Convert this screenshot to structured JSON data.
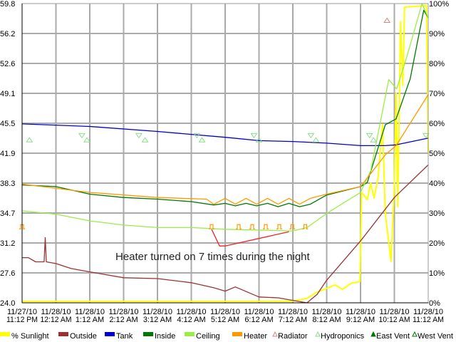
{
  "chart_data": {
    "type": "line",
    "annotation": "Heater turned on 7 times during the night",
    "grid": true,
    "legend_position": "bottom",
    "x_ticks": [
      [
        "11/27/10",
        "11:12 PM"
      ],
      [
        "11/28/10",
        "12:12 AM"
      ],
      [
        "11/28/10",
        "1:12 AM"
      ],
      [
        "11/28/10",
        "2:12 AM"
      ],
      [
        "11/28/10",
        "3:12 AM"
      ],
      [
        "11/28/10",
        "4:12 AM"
      ],
      [
        "11/28/10",
        "5:12 AM"
      ],
      [
        "11/28/10",
        "6:12 AM"
      ],
      [
        "11/28/10",
        "7:12 AM"
      ],
      [
        "11/28/10",
        "8:12 AM"
      ],
      [
        "11/28/10",
        "9:12 AM"
      ],
      [
        "11/28/10",
        "10:12 AM"
      ],
      [
        "11/28/10",
        "11:12 AM"
      ]
    ],
    "xlim": [
      "23:12",
      "11:12"
    ],
    "y_left": {
      "ticks": [
        "59.8",
        "56.2",
        "52.6",
        "49.1",
        "45.5",
        "41.9",
        "38.3",
        "34.7",
        "31.2",
        "27.6",
        "24.0"
      ],
      "ylim": [
        24.0,
        59.8
      ]
    },
    "y_right": {
      "ticks": [
        "100%",
        "90%",
        "80%",
        "70%",
        "60%",
        "50%",
        "40%",
        "30%",
        "20%",
        "10%",
        "0%"
      ],
      "ylim": [
        0,
        100
      ]
    },
    "series": [
      {
        "name": "% Sunlight",
        "color": "#ffff00",
        "axis": "right",
        "points": [
          [
            "23:12",
            0.5
          ],
          [
            "07:11",
            0.5
          ],
          [
            "07:37",
            1.5
          ],
          [
            "07:55",
            3.6
          ],
          [
            "08:12",
            4.8
          ],
          [
            "08:27",
            6
          ],
          [
            "08:40",
            4.5
          ],
          [
            "08:55",
            6.5
          ],
          [
            "09:11",
            7.1
          ],
          [
            "09:14",
            36.9
          ],
          [
            "09:24",
            34.5
          ],
          [
            "09:30",
            40
          ],
          [
            "09:36",
            35
          ],
          [
            "09:43",
            41.7
          ],
          [
            "09:51",
            59.5
          ],
          [
            "09:56",
            29.8
          ],
          [
            "10:06",
            13.8
          ],
          [
            "10:12",
            40
          ],
          [
            "10:15",
            70.2
          ],
          [
            "10:18",
            32.1
          ],
          [
            "10:23",
            94
          ],
          [
            "10:27",
            72.6
          ],
          [
            "10:30",
            98.8
          ],
          [
            "11:09",
            99.3
          ],
          [
            "11:12",
            50
          ]
        ]
      },
      {
        "name": "Outside",
        "color": "#993333",
        "axis": "left",
        "points": [
          [
            "23:12",
            29.4
          ],
          [
            "23:23",
            29.4
          ],
          [
            "23:36",
            28.9
          ],
          [
            "23:51",
            28.9
          ],
          [
            "23:53",
            31.8
          ],
          [
            "23:55",
            28.9
          ],
          [
            "00:12",
            28.7
          ],
          [
            "00:39",
            28.1
          ],
          [
            "01:12",
            27.7
          ],
          [
            "02:12",
            27.0
          ],
          [
            "03:12",
            26.9
          ],
          [
            "04:12",
            26.4
          ],
          [
            "04:52",
            25.8
          ],
          [
            "05:12",
            25.4
          ],
          [
            "05:30",
            25.9
          ],
          [
            "06:12",
            24.7
          ],
          [
            "06:46",
            24.6
          ],
          [
            "07:11",
            24.3
          ],
          [
            "07:37",
            24.0
          ],
          [
            "07:55",
            25.0
          ],
          [
            "08:12",
            26.7
          ],
          [
            "09:12",
            31.4
          ],
          [
            "10:12",
            36.6
          ],
          [
            "11:12",
            40.5
          ]
        ]
      },
      {
        "name": "Tank",
        "color": "#0000cc",
        "axis": "left",
        "points": [
          [
            "23:12",
            45.4
          ],
          [
            "01:12",
            45.1
          ],
          [
            "03:12",
            44.5
          ],
          [
            "05:12",
            43.8
          ],
          [
            "06:12",
            43.4
          ],
          [
            "07:12",
            43.3
          ],
          [
            "08:12",
            43.1
          ],
          [
            "09:12",
            42.8
          ],
          [
            "09:56",
            42.8
          ],
          [
            "10:15",
            42.9
          ],
          [
            "11:12",
            43.7
          ]
        ]
      },
      {
        "name": "Inside",
        "color": "#007700",
        "axis": "left",
        "points": [
          [
            "23:12",
            38.1
          ],
          [
            "00:12",
            37.9
          ],
          [
            "01:12",
            37.0
          ],
          [
            "02:12",
            36.6
          ],
          [
            "03:12",
            36.4
          ],
          [
            "04:12",
            36.1
          ],
          [
            "04:52",
            35.7
          ],
          [
            "05:12",
            35.9
          ],
          [
            "05:30",
            35.6
          ],
          [
            "05:49",
            35.9
          ],
          [
            "06:08",
            35.6
          ],
          [
            "06:27",
            35.9
          ],
          [
            "06:46",
            35.5
          ],
          [
            "07:05",
            35.9
          ],
          [
            "07:24",
            35.5
          ],
          [
            "07:43",
            35.8
          ],
          [
            "08:12",
            36.9
          ],
          [
            "09:12",
            37.9
          ],
          [
            "09:24",
            38.4
          ],
          [
            "09:56",
            45.3
          ],
          [
            "10:15",
            46.0
          ],
          [
            "10:40",
            50.8
          ],
          [
            "11:04",
            59.0
          ],
          [
            "11:12",
            58.1
          ]
        ]
      },
      {
        "name": "Ceiling",
        "color": "#99ee44",
        "axis": "left",
        "points": [
          [
            "23:12",
            35.0
          ],
          [
            "00:12",
            34.6
          ],
          [
            "01:12",
            33.8
          ],
          [
            "02:12",
            33.3
          ],
          [
            "03:12",
            33.0
          ],
          [
            "04:12",
            33.0
          ],
          [
            "05:12",
            32.8
          ],
          [
            "07:12",
            32.6
          ],
          [
            "07:37",
            33.0
          ],
          [
            "08:12",
            34.7
          ],
          [
            "09:12",
            37.2
          ],
          [
            "09:30",
            39.8
          ],
          [
            "10:02",
            50.7
          ],
          [
            "10:16",
            49.6
          ],
          [
            "10:34",
            53.4
          ],
          [
            "11:01",
            59.8
          ],
          [
            "11:12",
            58.1
          ]
        ]
      },
      {
        "name": "Heater",
        "color": "#ff9900",
        "axis": "left",
        "points": [
          [
            "23:12",
            38.2
          ],
          [
            "01:12",
            37.2
          ],
          [
            "03:12",
            36.6
          ],
          [
            "04:39",
            36.4
          ],
          [
            "04:52",
            35.8
          ],
          [
            "05:12",
            36.5
          ],
          [
            "05:30",
            35.8
          ],
          [
            "05:49",
            36.5
          ],
          [
            "06:08",
            35.8
          ],
          [
            "06:27",
            36.5
          ],
          [
            "06:46",
            35.8
          ],
          [
            "07:05",
            36.5
          ],
          [
            "07:24",
            35.8
          ],
          [
            "07:43",
            36.5
          ],
          [
            "08:12",
            37.0
          ],
          [
            "09:12",
            37.9
          ],
          [
            "09:56",
            41.7
          ],
          [
            "10:15",
            42.8
          ],
          [
            "11:12",
            48.9
          ]
        ]
      },
      {
        "color": "#ee2222",
        "axis": "left",
        "points": [
          [
            "04:48",
            32.8
          ],
          [
            "05:02",
            30.8
          ],
          [
            "05:12",
            30.8
          ],
          [
            "07:05",
            32.5
          ]
        ]
      }
    ],
    "heater_on_markers": {
      "color": "#ff9900",
      "value": 33.1,
      "times": [
        "23:12",
        "04:48",
        "05:36",
        "06:00",
        "06:24",
        "06:48",
        "07:11",
        "07:34"
      ]
    },
    "markers": [
      {
        "name": "Hydroponics",
        "symbol": "triangle-up",
        "color": "#88dd88",
        "value": 43.5,
        "times": [
          "23:25",
          "01:07",
          "02:50",
          "04:31",
          "06:12",
          "07:53",
          "09:35"
        ]
      },
      {
        "symbol": "triangle-down",
        "color": "#88dd88",
        "value": 44.0,
        "times": [
          "00:58",
          "02:39",
          "04:22",
          "06:03",
          "07:44",
          "09:28",
          "11:08"
        ]
      },
      {
        "name": "Radiator",
        "symbol": "triangle-up",
        "color": "#cc8888",
        "value": 57.8,
        "times": [
          "09:59"
        ]
      }
    ],
    "legend": [
      {
        "label": "% Sunlight",
        "kind": "swatch",
        "color": "#ffff00"
      },
      {
        "label": "Outside",
        "kind": "swatch",
        "color": "#993333"
      },
      {
        "label": "Tank",
        "kind": "swatch",
        "color": "#0000cc"
      },
      {
        "label": "Inside",
        "kind": "swatch",
        "color": "#007700"
      },
      {
        "label": "Ceiling",
        "kind": "swatch",
        "color": "#99ee44"
      },
      {
        "label": "Heater",
        "kind": "swatch",
        "color": "#ff9900"
      },
      {
        "label": "Radiator",
        "kind": "tri",
        "color": "#cc8888"
      },
      {
        "label": "Hydroponics",
        "kind": "tri",
        "color": "#88dd88"
      },
      {
        "label": "East Vent",
        "kind": "trifill",
        "color": "#007700"
      },
      {
        "label": "West Vent",
        "kind": "tri",
        "color": "#007700"
      }
    ]
  }
}
